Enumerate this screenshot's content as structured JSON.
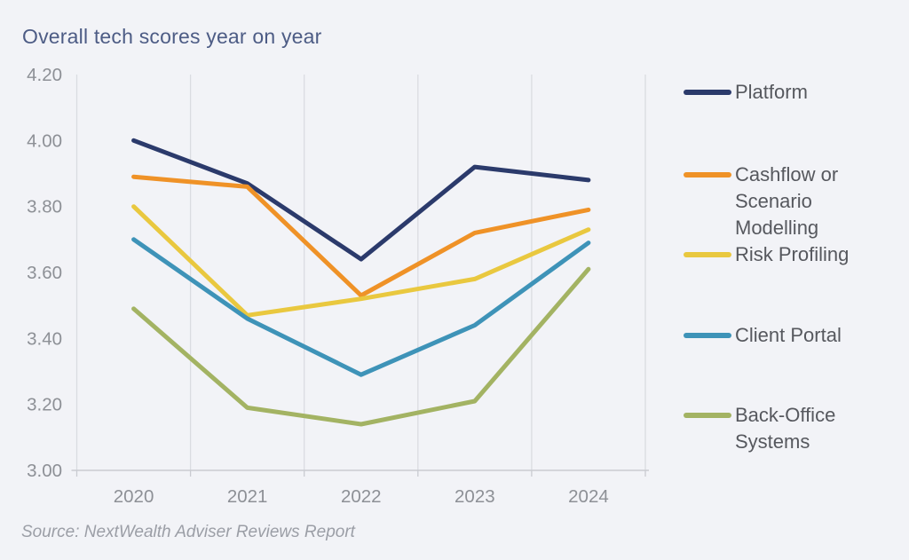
{
  "title": "Overall tech scores year on year",
  "source": {
    "text": "Source: NextWealth Adviser Reviews Report"
  },
  "colors": {
    "background": "#f2f3f7",
    "title_text": "#4d5c85",
    "axis_text": "#8d9096",
    "legend_text": "#56585e",
    "gridline": "#dadce1",
    "axis_line": "#c9cbd1",
    "source_text": "#9b9ea6"
  },
  "chart_data": {
    "type": "line",
    "title": "Overall tech scores year on year",
    "xlabel": "",
    "ylabel": "",
    "categories": [
      "2020",
      "2021",
      "2022",
      "2023",
      "2024"
    ],
    "ylim": [
      3.0,
      4.2
    ],
    "yticks": [
      4.2,
      4.0,
      3.8,
      3.6,
      3.4,
      3.2,
      3.0
    ],
    "grid": "vertical-only",
    "legend_position": "right",
    "series": [
      {
        "name": "Platform",
        "color": "#2b3a6b",
        "values": [
          4.0,
          3.87,
          3.64,
          3.92,
          3.88
        ]
      },
      {
        "name": "Cashflow or Scenario Modelling",
        "color": "#ef9227",
        "values": [
          3.89,
          3.86,
          3.53,
          3.72,
          3.79
        ]
      },
      {
        "name": "Risk Profiling",
        "color": "#e9c83f",
        "values": [
          3.8,
          3.47,
          3.52,
          3.58,
          3.73
        ]
      },
      {
        "name": "Client Portal",
        "color": "#3e93b8",
        "values": [
          3.7,
          3.46,
          3.29,
          3.44,
          3.69
        ]
      },
      {
        "name": "Back-Office Systems",
        "color": "#a3b363",
        "values": [
          3.49,
          3.19,
          3.14,
          3.21,
          3.61
        ]
      }
    ]
  }
}
